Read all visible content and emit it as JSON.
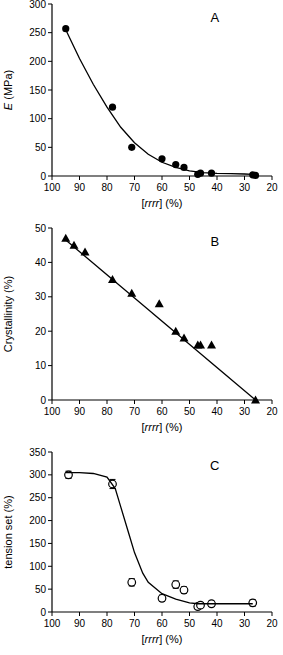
{
  "chart_data": [
    {
      "type": "scatter",
      "title": "A",
      "x_label": "[rrrr] (%)",
      "y_label": "E (MPa)",
      "xlim": [
        100,
        20
      ],
      "xticks": [
        100,
        90,
        80,
        70,
        60,
        50,
        40,
        30,
        20
      ],
      "ylim": [
        0,
        300
      ],
      "yticks": [
        0,
        50,
        100,
        150,
        200,
        250,
        300
      ],
      "series": [
        {
          "type": "scatter",
          "color": "#000000",
          "marker": "circle",
          "x": [
            95,
            78,
            71,
            60,
            55,
            52,
            47,
            46,
            42,
            27,
            26
          ],
          "values": [
            257,
            120,
            50,
            30,
            20,
            15,
            3,
            5,
            5,
            2,
            1
          ]
        },
        {
          "type": "line",
          "color": "#000000",
          "line_style": "solid",
          "x": [
            95,
            90,
            85,
            80,
            75,
            70,
            65,
            60,
            55,
            50,
            45,
            40,
            35,
            30,
            27
          ],
          "values": [
            255,
            205,
            160,
            120,
            85,
            58,
            38,
            24,
            15,
            9,
            6,
            4.5,
            4,
            3.5,
            3
          ]
        }
      ]
    },
    {
      "type": "scatter",
      "title": "B",
      "x_label": "[rrrr] (%)",
      "y_label": "Crystallinity (%)",
      "xlim": [
        100,
        20
      ],
      "xticks": [
        100,
        90,
        80,
        70,
        60,
        50,
        40,
        30,
        20
      ],
      "ylim": [
        0,
        50
      ],
      "yticks": [
        0,
        10,
        20,
        30,
        40,
        50
      ],
      "series": [
        {
          "type": "scatter",
          "color": "#000000",
          "marker": "triangle",
          "x": [
            95,
            92,
            88,
            78,
            71,
            61,
            55,
            52,
            47,
            46,
            42,
            26
          ],
          "values": [
            47,
            45,
            43,
            35,
            31,
            28,
            20,
            18,
            16,
            16,
            16,
            0
          ]
        },
        {
          "type": "line",
          "color": "#000000",
          "line_style": "solid",
          "x": [
            95,
            26
          ],
          "values": [
            46.5,
            0
          ]
        }
      ]
    },
    {
      "type": "scatter",
      "title": "C",
      "x_label": "[rrrr] (%)",
      "y_label": "tension set (%)",
      "xlim": [
        100,
        20
      ],
      "xticks": [
        100,
        90,
        80,
        70,
        60,
        50,
        40,
        30,
        20
      ],
      "ylim": [
        0,
        350
      ],
      "yticks": [
        0,
        50,
        100,
        150,
        200,
        250,
        300,
        350
      ],
      "series": [
        {
          "type": "scatter",
          "color": "#000000",
          "marker": "open_circle",
          "x": [
            94,
            78,
            71,
            60,
            55,
            52,
            47,
            46,
            42,
            27
          ],
          "values": [
            300,
            280,
            65,
            30,
            60,
            48,
            12,
            15,
            18,
            20
          ],
          "errors": [
            8,
            10,
            8,
            7,
            8,
            7,
            5,
            5,
            6,
            7
          ]
        },
        {
          "type": "line",
          "color": "#000000",
          "line_style": "solid",
          "x": [
            95,
            90,
            85,
            80,
            77,
            75,
            72,
            70,
            67,
            65,
            60,
            55,
            50,
            47,
            45,
            40,
            30,
            27
          ],
          "values": [
            305,
            305,
            303,
            295,
            270,
            230,
            170,
            130,
            85,
            65,
            40,
            28,
            20,
            18,
            18,
            18,
            18,
            18
          ]
        }
      ]
    }
  ]
}
